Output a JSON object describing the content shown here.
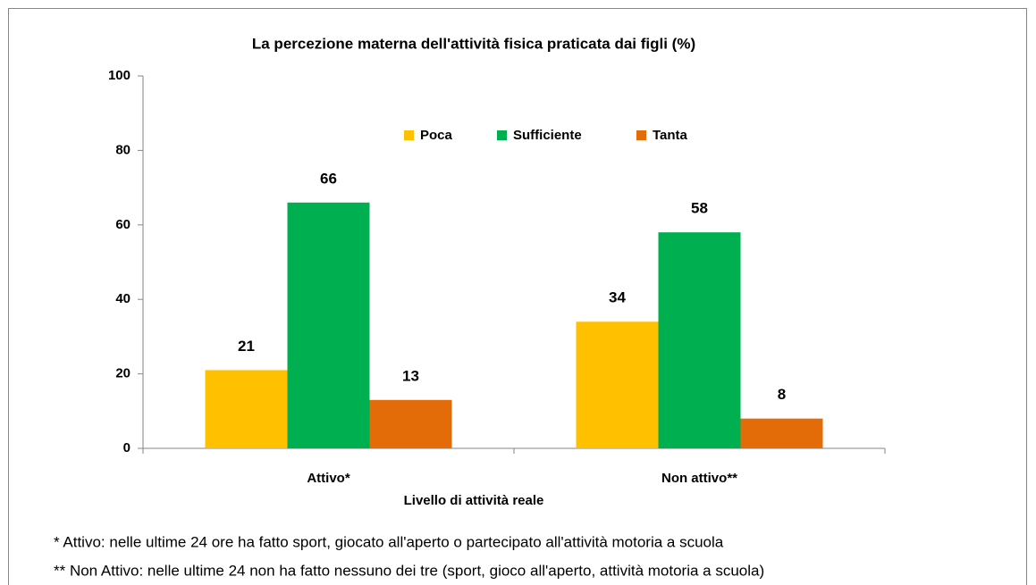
{
  "chart_data": {
    "type": "bar",
    "title": "La percezione materna dell'attività fisica praticata dai figli (%)",
    "x_label": "Livello di attività reale",
    "categories": [
      "Attivo*",
      "Non attivo**"
    ],
    "series": [
      {
        "name": "Poca",
        "color": "#FFC000",
        "values": [
          21,
          34
        ]
      },
      {
        "name": "Sufficiente",
        "color": "#00B050",
        "values": [
          66,
          58
        ]
      },
      {
        "name": "Tanta",
        "color": "#E36C09",
        "values": [
          13,
          8
        ]
      }
    ],
    "ylim": [
      0,
      100
    ],
    "yticks": [
      0,
      20,
      40,
      60,
      80,
      100
    ],
    "legend": "top",
    "notes": [
      "* Attivo: nelle ultime 24 ore ha fatto sport, giocato all'aperto o partecipato all'attività motoria a scuola",
      "** Non Attivo: nelle ultime 24 non ha fatto nessuno dei tre (sport, gioco all'aperto, attività motoria a scuola)"
    ]
  }
}
